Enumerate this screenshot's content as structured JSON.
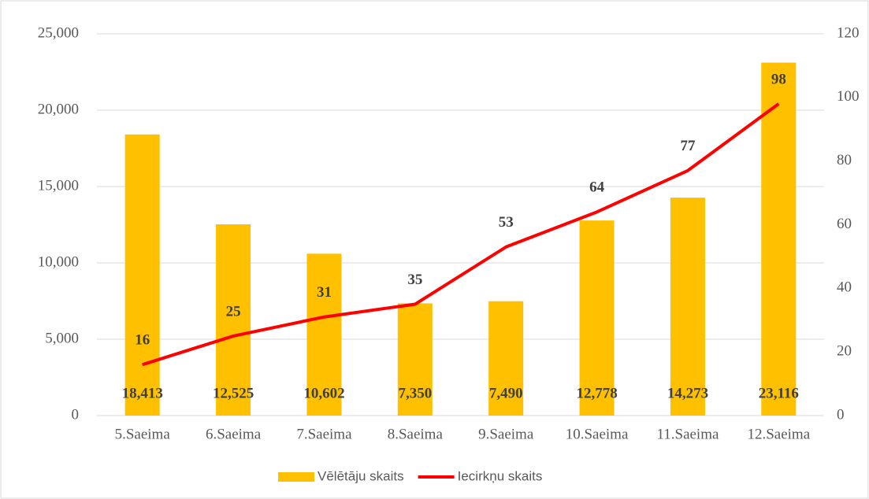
{
  "chart_data": {
    "type": "bar",
    "categories": [
      "5.Saeima",
      "6.Saeima",
      "7.Saeima",
      "8.Saeima",
      "9.Saeima",
      "10.Saeima",
      "11.Saeima",
      "12.Saeima"
    ],
    "series": [
      {
        "name": "Vēlētāju skaits",
        "type": "bar",
        "color": "#ffc000",
        "values": [
          18413,
          12525,
          10602,
          7350,
          7490,
          12778,
          14273,
          23116
        ],
        "value_labels": [
          "18,413",
          "12,525",
          "10,602",
          "7,350",
          "7,490",
          "12,778",
          "14,273",
          "23,116"
        ]
      },
      {
        "name": "Iecirkņu skaits",
        "type": "line",
        "color": "#ff0000",
        "axis": "y2",
        "values": [
          16,
          25,
          31,
          35,
          53,
          64,
          77,
          98
        ]
      }
    ],
    "ylim": [
      0,
      25000
    ],
    "yticks": [
      0,
      {
        "value": 5000,
        "label": "5,000"
      },
      {
        "value": 10000,
        "label": "10,000"
      },
      {
        "value": 15000,
        "label": "15,000"
      },
      {
        "value": 20000,
        "label": "20,000"
      },
      {
        "value": 25000,
        "label": "25,000"
      }
    ],
    "y2lim": [
      0,
      120
    ],
    "y2ticks": [
      0,
      20,
      40,
      60,
      80,
      100,
      120
    ],
    "grid": true,
    "legend": "bottom"
  }
}
